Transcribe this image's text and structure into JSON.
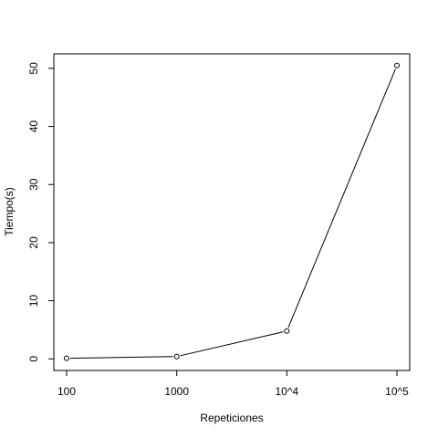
{
  "chart_data": {
    "type": "line",
    "categories": [
      "100",
      "1000",
      "10^4",
      "10^5"
    ],
    "values": [
      0.1,
      0.4,
      4.8,
      50.5
    ],
    "xlabel": "Repeticiones",
    "ylabel": "Tiempo(s)",
    "yticks": [
      "0",
      "10",
      "20",
      "30",
      "40",
      "50"
    ],
    "ylim": [
      -2,
      52.5
    ],
    "grid": false,
    "markers": "open-circle",
    "colors": {
      "line": "#000000",
      "axes": "#000000",
      "background": "#ffffff"
    }
  }
}
